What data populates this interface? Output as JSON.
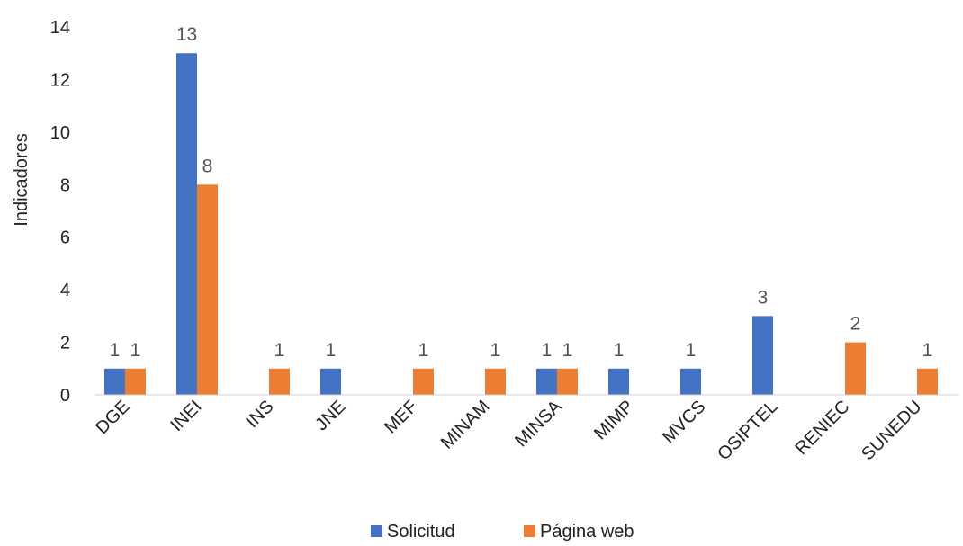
{
  "chart_data": {
    "type": "bar",
    "ylabel": "Indicadores",
    "xlabel": "",
    "ylim": [
      0,
      14
    ],
    "yticks": [
      0,
      2,
      4,
      6,
      8,
      10,
      12,
      14
    ],
    "grid": false,
    "legend_position": "bottom",
    "categories": [
      "DGE",
      "INEI",
      "INS",
      "JNE",
      "MEF",
      "MINAM",
      "MINSA",
      "MIMP",
      "MVCS",
      "OSIPTEL",
      "RENIEC",
      "SUNEDU"
    ],
    "series": [
      {
        "name": "Solicitud",
        "color": "#4472C4",
        "values": [
          1,
          13,
          null,
          1,
          null,
          null,
          1,
          1,
          1,
          3,
          null,
          null
        ]
      },
      {
        "name": "Página web",
        "color": "#ED7D31",
        "values": [
          1,
          8,
          1,
          null,
          1,
          1,
          1,
          null,
          null,
          null,
          2,
          1
        ]
      }
    ]
  }
}
